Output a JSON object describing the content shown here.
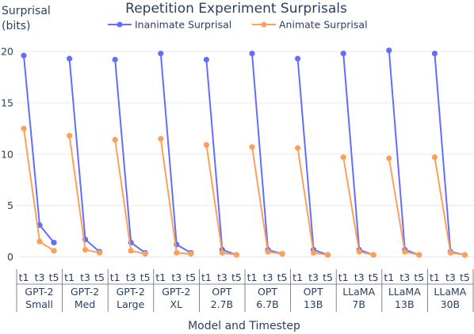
{
  "chart_data": {
    "type": "line",
    "title": "Repetition Experiment Surprisals",
    "ylabel": [
      "Surprisal",
      "(bits)"
    ],
    "xlabel": "Model and Timestep",
    "ylim": [
      -0.8,
      21
    ],
    "yticks": [
      0,
      5,
      10,
      15,
      20
    ],
    "grid": true,
    "legend_position": "top",
    "timesteps": [
      "t1",
      "t3",
      "t5"
    ],
    "models": [
      [
        "GPT-2",
        "Small"
      ],
      [
        "GPT-2",
        "Med"
      ],
      [
        "GPT-2",
        "Large"
      ],
      [
        "GPT-2",
        "XL"
      ],
      [
        "OPT",
        "2.7B"
      ],
      [
        "OPT",
        "6.7B"
      ],
      [
        "OPT",
        "13B"
      ],
      [
        "LLaMA",
        "7B"
      ],
      [
        "LLaMA",
        "13B"
      ],
      [
        "LLaMA",
        "30B"
      ]
    ],
    "series": [
      {
        "name": "Inanimate Surprisal",
        "color": "#636efa",
        "values": [
          [
            19.6,
            3.1,
            1.4
          ],
          [
            19.3,
            1.7,
            0.5
          ],
          [
            19.2,
            1.4,
            0.4
          ],
          [
            19.8,
            1.2,
            0.4
          ],
          [
            19.2,
            0.7,
            0.2
          ],
          [
            19.8,
            0.7,
            0.3
          ],
          [
            19.3,
            0.7,
            0.2
          ],
          [
            19.8,
            0.7,
            0.2
          ],
          [
            20.1,
            0.7,
            0.2
          ],
          [
            19.8,
            0.5,
            0.2
          ]
        ]
      },
      {
        "name": "Animate Surprisal",
        "color": "#fda15a",
        "values": [
          [
            12.5,
            1.5,
            0.6
          ],
          [
            11.8,
            0.7,
            0.4
          ],
          [
            11.4,
            0.6,
            0.3
          ],
          [
            11.5,
            0.4,
            0.3
          ],
          [
            10.9,
            0.4,
            0.2
          ],
          [
            10.7,
            0.5,
            0.3
          ],
          [
            10.6,
            0.4,
            0.2
          ],
          [
            9.7,
            0.5,
            0.2
          ],
          [
            9.6,
            0.5,
            0.2
          ],
          [
            9.7,
            0.4,
            0.2
          ]
        ]
      }
    ]
  }
}
